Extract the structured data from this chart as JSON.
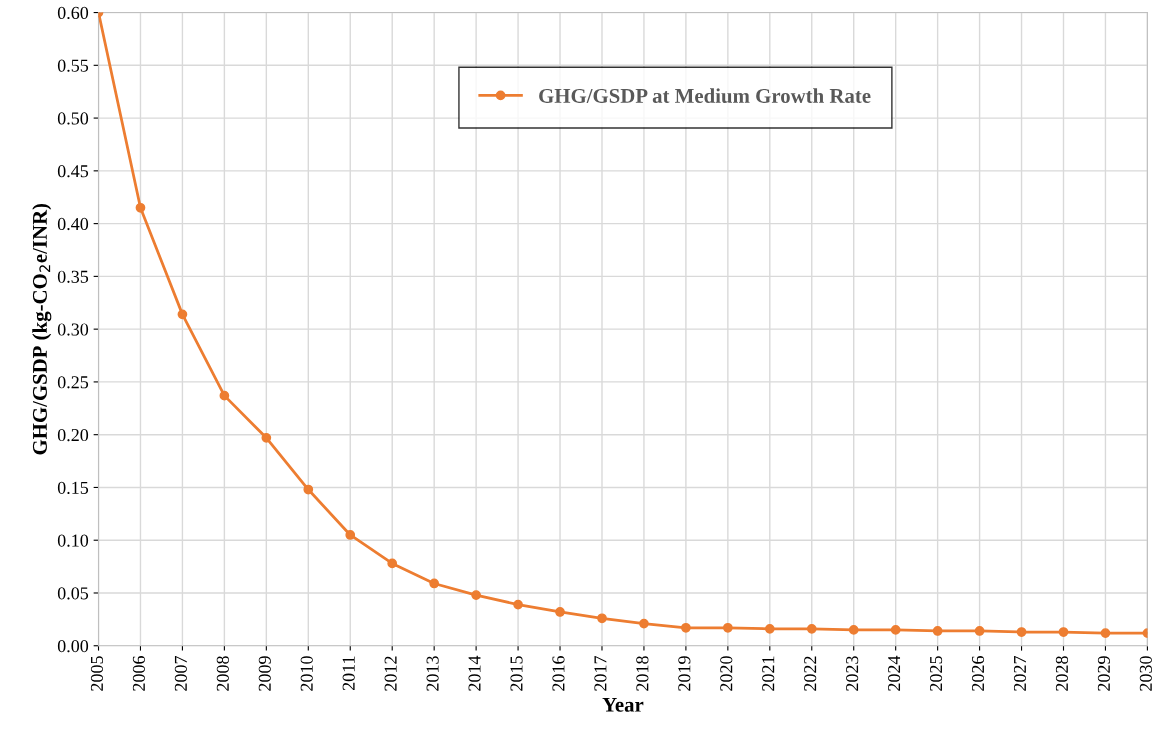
{
  "chart_data": {
    "type": "line",
    "xlabel": "Year",
    "ylabel": "GHG/GSDP (kg-CO$_{2}$e/INR)",
    "categories": [
      "2005",
      "2006",
      "2007",
      "2008",
      "2009",
      "2010",
      "2011",
      "2012",
      "2013",
      "2014",
      "2015",
      "2016",
      "2017",
      "2018",
      "2019",
      "2020",
      "2021",
      "2022",
      "2023",
      "2024",
      "2025",
      "2026",
      "2027",
      "2028",
      "2029",
      "2030"
    ],
    "series": [
      {
        "name": "GHG/GSDP at Medium Growth Rate",
        "color": "#ed7d31",
        "values": [
          0.6,
          0.415,
          0.314,
          0.237,
          0.197,
          0.148,
          0.105,
          0.078,
          0.059,
          0.048,
          0.039,
          0.032,
          0.026,
          0.021,
          0.017,
          0.017,
          0.016,
          0.016,
          0.015,
          0.015,
          0.014,
          0.014,
          0.013,
          0.013,
          0.012,
          0.012
        ]
      }
    ],
    "ylim": [
      0,
      0.6
    ],
    "yticks": [
      {
        "value": 0,
        "label": "0.00"
      },
      {
        "value": 0.05,
        "label": "0.05"
      },
      {
        "value": 0.1,
        "label": "0.10"
      },
      {
        "value": 0.15,
        "label": "0.15"
      },
      {
        "value": 0.2,
        "label": "0.20"
      },
      {
        "value": 0.25,
        "label": "0.25"
      },
      {
        "value": 0.3,
        "label": "0.30"
      },
      {
        "value": 0.35,
        "label": "0.35"
      },
      {
        "value": 0.4,
        "label": "0.40"
      },
      {
        "value": 0.45,
        "label": "0.45"
      },
      {
        "value": 0.5,
        "label": "0.50"
      },
      {
        "value": 0.55,
        "label": "0.55"
      },
      {
        "value": 0.6,
        "label": "0.60"
      }
    ],
    "grid": true,
    "legend": "top",
    "marker": "circle",
    "line_style": "solid"
  }
}
